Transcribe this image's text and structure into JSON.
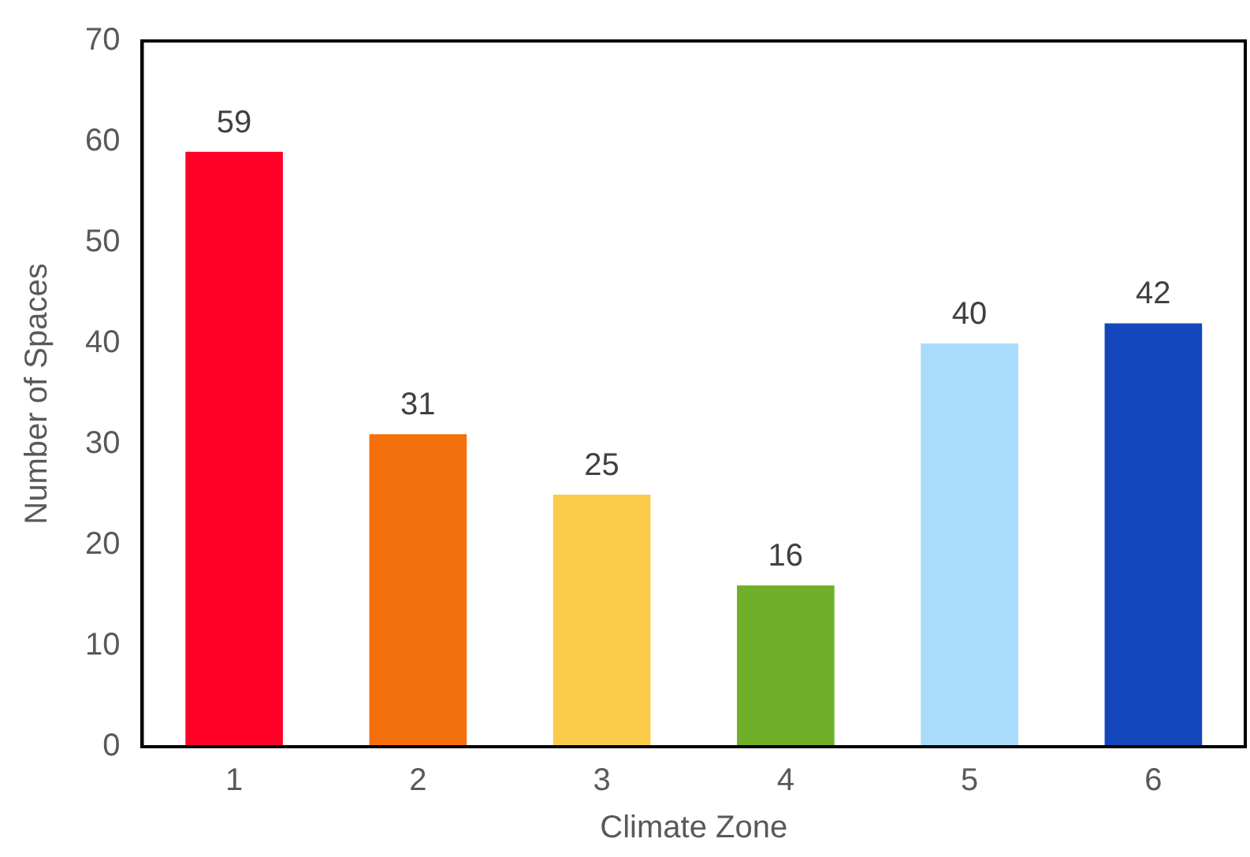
{
  "chart_data": {
    "type": "bar",
    "xlabel": "Climate Zone",
    "ylabel": "Number of Spaces",
    "categories": [
      "1",
      "2",
      "3",
      "4",
      "5",
      "6"
    ],
    "values": [
      59,
      31,
      25,
      16,
      40,
      42
    ],
    "colors": [
      "#ff0026",
      "#f4700c",
      "#fbcb4a",
      "#6faf29",
      "#a9dcfc",
      "#1446bc"
    ],
    "ylim": [
      0,
      70
    ],
    "yticks": [
      0,
      10,
      20,
      30,
      40,
      50,
      60,
      70
    ],
    "grid": false,
    "legend": false,
    "data_labels": true
  }
}
